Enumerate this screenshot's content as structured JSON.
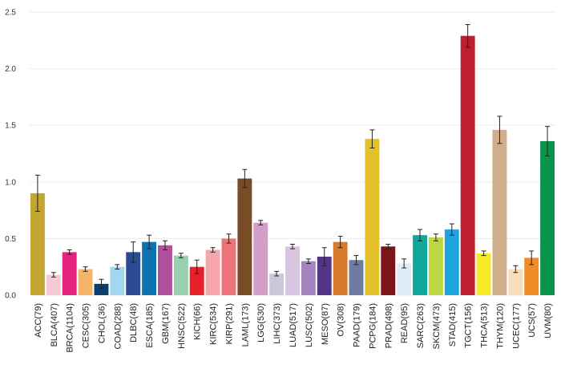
{
  "chart_data": {
    "type": "bar",
    "title": "",
    "xlabel": "",
    "ylabel": "",
    "ylim": [
      0,
      2.55
    ],
    "yticks": [
      0.0,
      0.5,
      1.0,
      1.5,
      2.0,
      2.5
    ],
    "ytick_labels": [
      "0.0",
      "0.5",
      "1.0",
      "1.5",
      "2.0",
      "2.5"
    ],
    "grid": true,
    "legend": "none",
    "categories": [
      "ACC(79)",
      "BLCA(407)",
      "BRCA(1104)",
      "CESC(305)",
      "CHOL(36)",
      "COAD(288)",
      "DLBC(48)",
      "ESCA(185)",
      "GBM(167)",
      "HNSC(522)",
      "KICH(66)",
      "KIRC(534)",
      "KIRP(291)",
      "LAML(173)",
      "LGG(530)",
      "LIHC(373)",
      "LUAD(517)",
      "LUSC(502)",
      "MESO(87)",
      "OV(308)",
      "PAAD(179)",
      "PCPG(184)",
      "PRAD(498)",
      "READ(95)",
      "SARC(263)",
      "SKCM(473)",
      "STAD(415)",
      "TGCT(156)",
      "THCA(513)",
      "THYM(120)",
      "UCEC(177)",
      "UCS(57)",
      "UVM(80)"
    ],
    "values": [
      0.9,
      0.18,
      0.38,
      0.23,
      0.1,
      0.25,
      0.38,
      0.47,
      0.44,
      0.35,
      0.25,
      0.4,
      0.5,
      1.03,
      0.64,
      0.19,
      0.43,
      0.3,
      0.34,
      0.47,
      0.31,
      1.38,
      0.43,
      0.28,
      0.53,
      0.51,
      0.58,
      2.29,
      0.37,
      1.46,
      0.23,
      0.33,
      1.36
    ],
    "errors": [
      0.16,
      0.02,
      0.02,
      0.02,
      0.04,
      0.02,
      0.09,
      0.06,
      0.04,
      0.02,
      0.06,
      0.02,
      0.04,
      0.08,
      0.02,
      0.02,
      0.02,
      0.02,
      0.08,
      0.05,
      0.04,
      0.08,
      0.02,
      0.04,
      0.05,
      0.03,
      0.05,
      0.1,
      0.02,
      0.12,
      0.03,
      0.06,
      0.13
    ],
    "colors": [
      "#C3A632",
      "#F6C9D7",
      "#E5227D",
      "#F4B469",
      "#0E3E6C",
      "#A2D7F0",
      "#2C4B95",
      "#0D72B0",
      "#B04F9A",
      "#9ACFAE",
      "#E8202A",
      "#F5A5AC",
      "#EC737A",
      "#774C27",
      "#D49CC9",
      "#CCC8D9",
      "#D9C5E2",
      "#A485BF",
      "#543585",
      "#D87A2B",
      "#6D7BA1",
      "#E3C12A",
      "#7D1419",
      "#DFEDF7",
      "#10A79B",
      "#BDD644",
      "#20A4DE",
      "#BE1E2D",
      "#F5EB24",
      "#D0AE8B",
      "#F9DEBD",
      "#F28C28",
      "#0A944B"
    ]
  }
}
